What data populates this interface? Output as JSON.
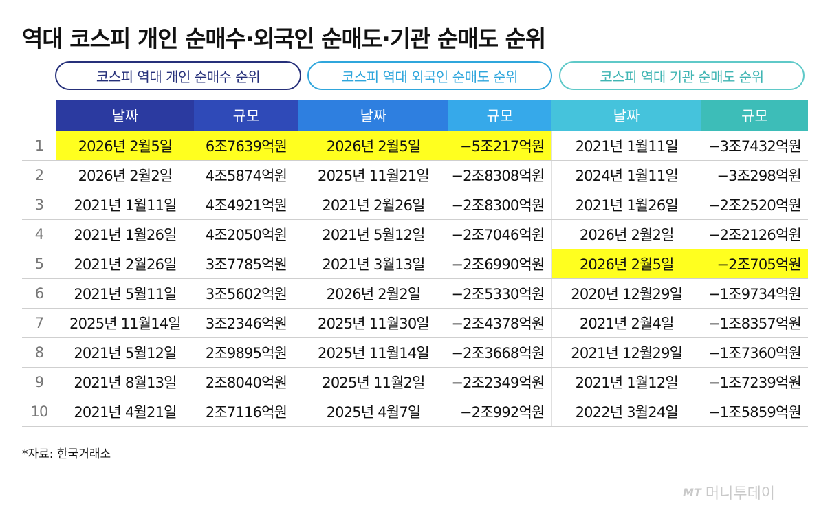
{
  "title": "역대 코스피 개인 순매수·외국인 순매도·기관 순매도 순위",
  "pills": [
    "코스피 역대 개인 순매수 순위",
    "코스피 역대 외국인 순매도 순위",
    "코스피 역대 기관 순매도 순위"
  ],
  "headers": [
    "날짜",
    "규모",
    "날짜",
    "규모",
    "날짜",
    "규모"
  ],
  "rows": [
    {
      "n": "1",
      "d1": "2026년 2월5일",
      "a1": "6조7639억원",
      "d2": "2026년 2월5일",
      "a2": "−5조217억원",
      "d3": "2021년 1월11일",
      "a3": "−3조7432억원"
    },
    {
      "n": "2",
      "d1": "2026년 2월2일",
      "a1": "4조5874억원",
      "d2": "2025년 11월21일",
      "a2": "−2조8308억원",
      "d3": "2024년 1월11일",
      "a3": "−3조298억원"
    },
    {
      "n": "3",
      "d1": "2021년 1월11일",
      "a1": "4조4921억원",
      "d2": "2021년 2월26일",
      "a2": "−2조8300억원",
      "d3": "2021년 1월26일",
      "a3": "−2조2520억원"
    },
    {
      "n": "4",
      "d1": "2021년 1월26일",
      "a1": "4조2050억원",
      "d2": "2021년 5월12일",
      "a2": "−2조7046억원",
      "d3": "2026년 2월2일",
      "a3": "−2조2126억원"
    },
    {
      "n": "5",
      "d1": "2021년 2월26일",
      "a1": "3조7785억원",
      "d2": "2021년 3월13일",
      "a2": "−2조6990억원",
      "d3": "2026년 2월5일",
      "a3": "−2조705억원"
    },
    {
      "n": "6",
      "d1": "2021년 5월11일",
      "a1": "3조5602억원",
      "d2": "2026년 2월2일",
      "a2": "−2조5330억원",
      "d3": "2020년 12월29일",
      "a3": "−1조9734억원"
    },
    {
      "n": "7",
      "d1": "2025년 11월14일",
      "a1": "3조2346억원",
      "d2": "2025년 11월30일",
      "a2": "−2조4378억원",
      "d3": "2021년 2월4일",
      "a3": "−1조8357억원"
    },
    {
      "n": "8",
      "d1": "2021년 5월12일",
      "a1": "2조9895억원",
      "d2": "2025년 11월14일",
      "a2": "−2조3668억원",
      "d3": "2021년 12월29일",
      "a3": "−1조7360억원"
    },
    {
      "n": "9",
      "d1": "2021년 8월13일",
      "a1": "2조8040억원",
      "d2": "2025년 11월2일",
      "a2": "−2조2349억원",
      "d3": "2021년 1월12일",
      "a3": "−1조7239억원"
    },
    {
      "n": "10",
      "d1": "2021년 4월21일",
      "a1": "2조7116억원",
      "d2": "2025년 4월7일",
      "a2": "−2조992억원",
      "d3": "2022년 3월24일",
      "a3": "−1조5859억원"
    }
  ],
  "source": "*자료: 한국거래소",
  "logo": {
    "mark": "MT",
    "text": "머니투데이"
  },
  "colors": {
    "highlight": "#ffff1f",
    "individual": "#26307a",
    "foreign": "#2fa6dc",
    "institution": "#5fc9c8"
  }
}
